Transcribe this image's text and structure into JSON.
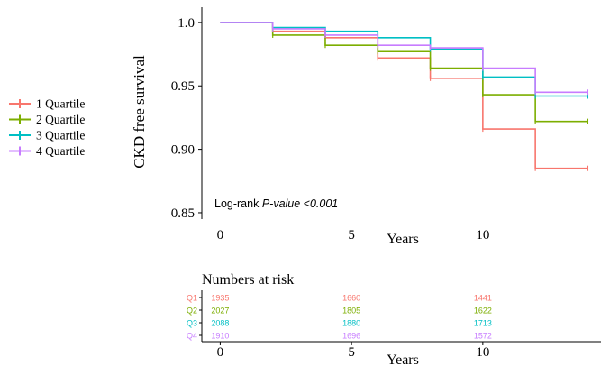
{
  "chart_data": [
    {
      "type": "line",
      "subtype": "kaplan-meier step",
      "xlabel": "Years",
      "ylabel": "CKD free survival",
      "xlim": [
        -0.7,
        14.5
      ],
      "ylim": [
        0.845,
        1.012
      ],
      "xticks": [
        0,
        5,
        10
      ],
      "yticks": [
        0.85,
        0.9,
        0.95,
        1.0
      ],
      "ytick_labels": [
        "0.85",
        "0.90",
        "0.95",
        "1.0"
      ],
      "grid": false,
      "legend_position": "left",
      "annotation": {
        "prefix": "Log-rank ",
        "italic": "P-value <0.001"
      },
      "series": [
        {
          "name": "1 Quartile",
          "color": "#F8766D",
          "x": [
            0,
            2,
            4,
            6,
            8,
            10,
            12,
            14
          ],
          "y": [
            1.0,
            0.993,
            0.988,
            0.972,
            0.956,
            0.916,
            0.885,
            0.885
          ],
          "censor_x": [
            2,
            4,
            6,
            8,
            10,
            12,
            14
          ]
        },
        {
          "name": "2 Quartile",
          "color": "#7CAE00",
          "x": [
            0,
            2,
            4,
            6,
            8,
            10,
            12,
            14
          ],
          "y": [
            1.0,
            0.99,
            0.982,
            0.977,
            0.964,
            0.943,
            0.922,
            0.922
          ],
          "censor_x": [
            2,
            4,
            6,
            8,
            10,
            12,
            14
          ]
        },
        {
          "name": "3 Quartile",
          "color": "#00BFC4",
          "x": [
            0,
            2,
            4,
            6,
            8,
            10,
            12,
            14
          ],
          "y": [
            1.0,
            0.996,
            0.993,
            0.988,
            0.979,
            0.957,
            0.942,
            0.942
          ],
          "censor_x": [
            2,
            4,
            6,
            8,
            10,
            12,
            14
          ]
        },
        {
          "name": "4 Quartile",
          "color": "#C77CFF",
          "x": [
            0,
            2,
            4,
            6,
            8,
            10,
            12,
            14
          ],
          "y": [
            1.0,
            0.995,
            0.99,
            0.982,
            0.98,
            0.964,
            0.945,
            0.945
          ],
          "censor_x": [
            2,
            4,
            6,
            8,
            10,
            12,
            14
          ]
        }
      ]
    },
    {
      "type": "table",
      "title": "Numbers at risk",
      "xlabel": "Years",
      "xticks": [
        0,
        5,
        10
      ],
      "rows": [
        {
          "label": "Q1",
          "color": "#F8766D",
          "values": [
            "1935",
            "1660",
            "1441"
          ]
        },
        {
          "label": "Q2",
          "color": "#7CAE00",
          "values": [
            "2027",
            "1805",
            "1622"
          ]
        },
        {
          "label": "Q3",
          "color": "#00BFC4",
          "values": [
            "2088",
            "1880",
            "1713"
          ]
        },
        {
          "label": "Q4",
          "color": "#C77CFF",
          "values": [
            "1910",
            "1696",
            "1572"
          ]
        }
      ]
    }
  ]
}
